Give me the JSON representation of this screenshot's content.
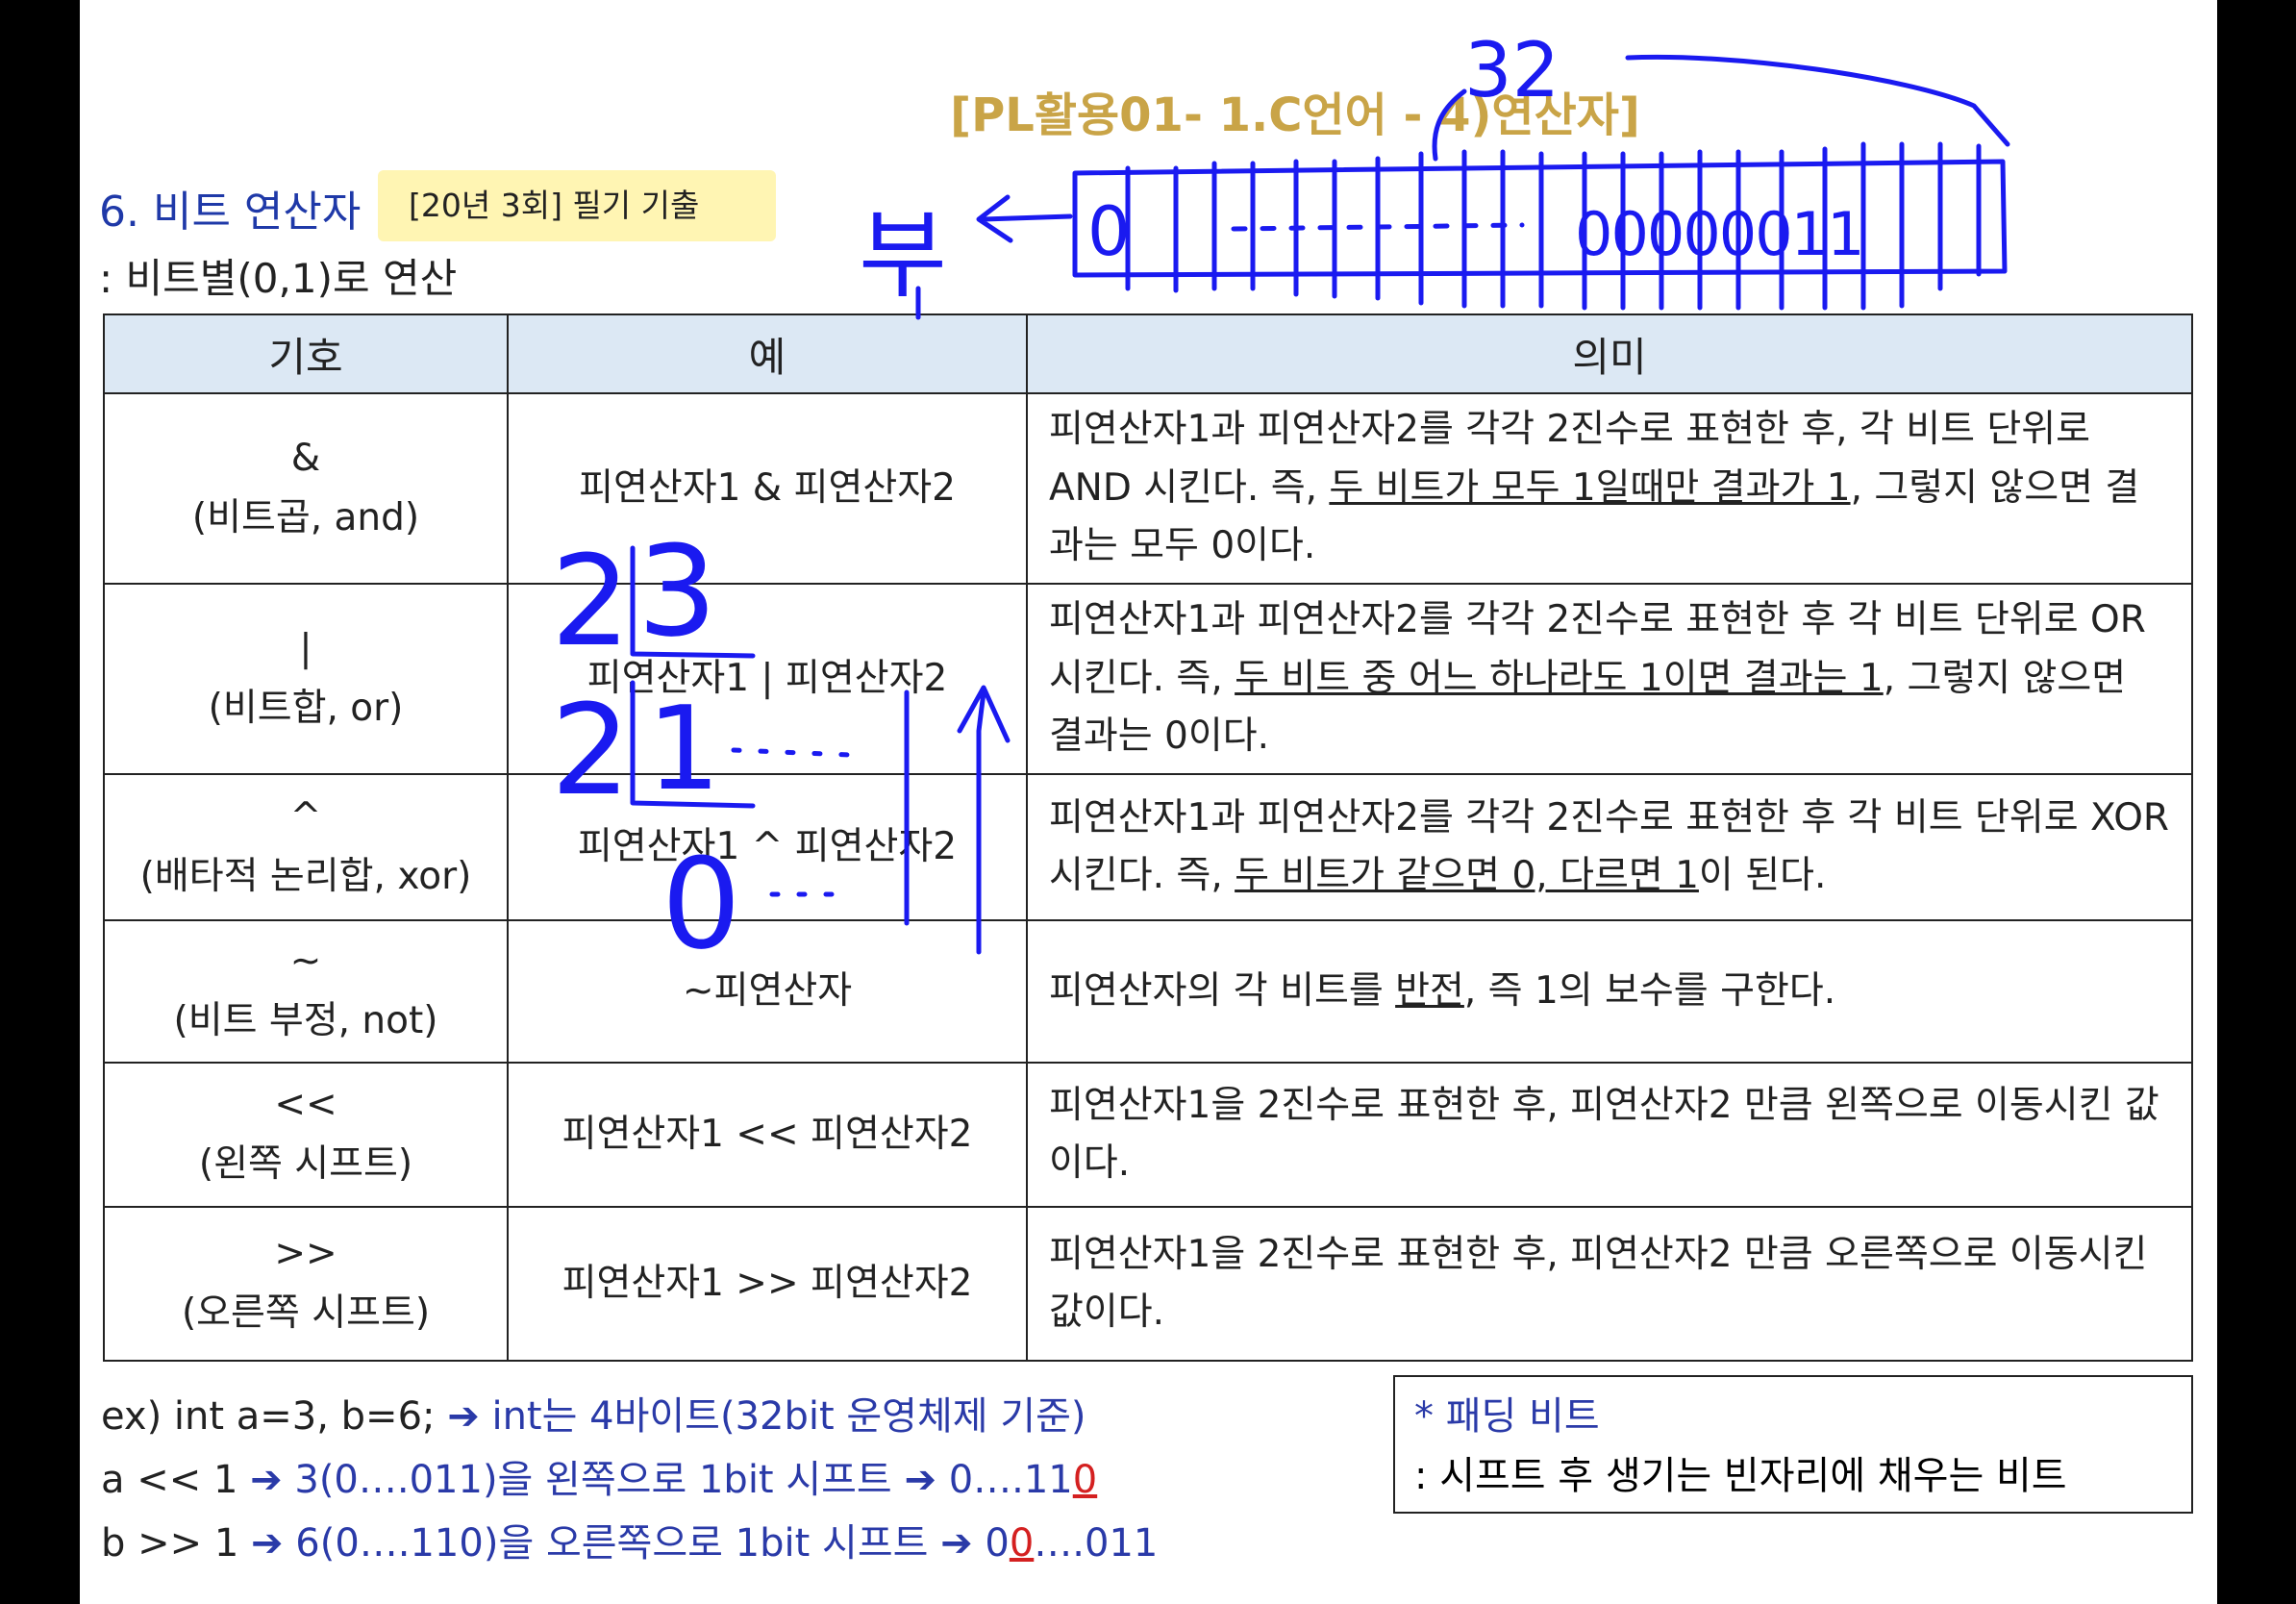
{
  "header": {
    "subtitle": "[PL활용01- 1.C언어 - 4)연산자]",
    "section_title": "6. 비트 연산자",
    "exam_badge": "[20년 3회] 필기 기출",
    "description": ": 비트별(0,1)로 연산"
  },
  "table": {
    "headers": [
      "기호",
      "예",
      "의미"
    ],
    "rows": [
      {
        "symbol": "&",
        "symbol_name": "(비트곱, and)",
        "example": "피연산자1 & 피연산자2",
        "meaning_pre": "피연산자1과 피연산자2를 각각 2진수로 표현한 후, 각 비트 단위로 AND 시킨다. 즉, ",
        "meaning_underline": "두 비트가 모두 1일때만 결과가 1",
        "meaning_post": ", 그렇지 않으면 결과는 모두 0이다."
      },
      {
        "symbol": "|",
        "symbol_name": "(비트합, or)",
        "example": "피연산자1 | 피연산자2",
        "meaning_pre": "피연산자1과 피연산자2를 각각 2진수로 표현한 후 각 비트 단위로 OR 시킨다. 즉, ",
        "meaning_underline": "두 비트 중 어느 하나라도 1이면 결과는 1",
        "meaning_post": ", 그렇지 않으면 결과는 0이다."
      },
      {
        "symbol": "^",
        "symbol_name": "(배타적 논리합, xor)",
        "example": "피연산자1 ^ 피연산자2",
        "meaning_pre": "피연산자1과 피연산자2를 각각 2진수로 표현한 후 각 비트 단위로 XOR 시킨다. 즉, ",
        "meaning_underline": "두 비트가 같으면 0, 다르면 1",
        "meaning_post": "이 된다."
      },
      {
        "symbol": "~",
        "symbol_name": "(비트 부정, not)",
        "example": "~피연산자",
        "meaning_pre": "피연산자의 각 비트를 ",
        "meaning_underline": "반전",
        "meaning_post": ", 즉 1의 보수를 구한다."
      },
      {
        "symbol": "<<",
        "symbol_name": "(왼쪽 시프트)",
        "example": "피연산자1 << 피연산자2",
        "meaning_pre": "피연산자1을 2진수로 표현한 후, 피연산자2 만큼 왼쪽으로 이동시킨 값이다.",
        "meaning_underline": "",
        "meaning_post": ""
      },
      {
        "symbol": ">>",
        "symbol_name": "(오른쪽 시프트)",
        "example": "피연산자1 >> 피연산자2",
        "meaning_pre": "피연산자1을 2진수로 표현한 후, 피연산자2 만큼 오른쪽으로 이동시킨 값이다.",
        "meaning_underline": "",
        "meaning_post": ""
      }
    ]
  },
  "examples": {
    "line1_code": "ex) int a=3, b=6;",
    "line1_note": "int는 4바이트(32bit 운영체제 기준)",
    "line2_code": "a << 1",
    "line2_mid": "3(0….011)을 왼쪽으로 1bit 시프트",
    "line2_result": "0….11",
    "line2_result_pad": "0",
    "line3_code": "b >> 1",
    "line3_mid": "6(0….110)을 오른쪽으로 1bit 시프트",
    "line3_result_pre": "0",
    "line3_result_pad": "0",
    "line3_result_post": "….011",
    "arrow": "➔"
  },
  "padding_note": {
    "title": "* 패딩 비트",
    "text": ": 시프트 후 생기는 빈자리에 채우는 비트"
  },
  "handwriting": {
    "bits_label": "32",
    "sign_label": "부",
    "leading_bit": "0",
    "trailing_bits": "00000011",
    "division_digits": [
      "2",
      "3",
      "2",
      "1",
      "0"
    ],
    "ink_color": "#1a1af0"
  }
}
